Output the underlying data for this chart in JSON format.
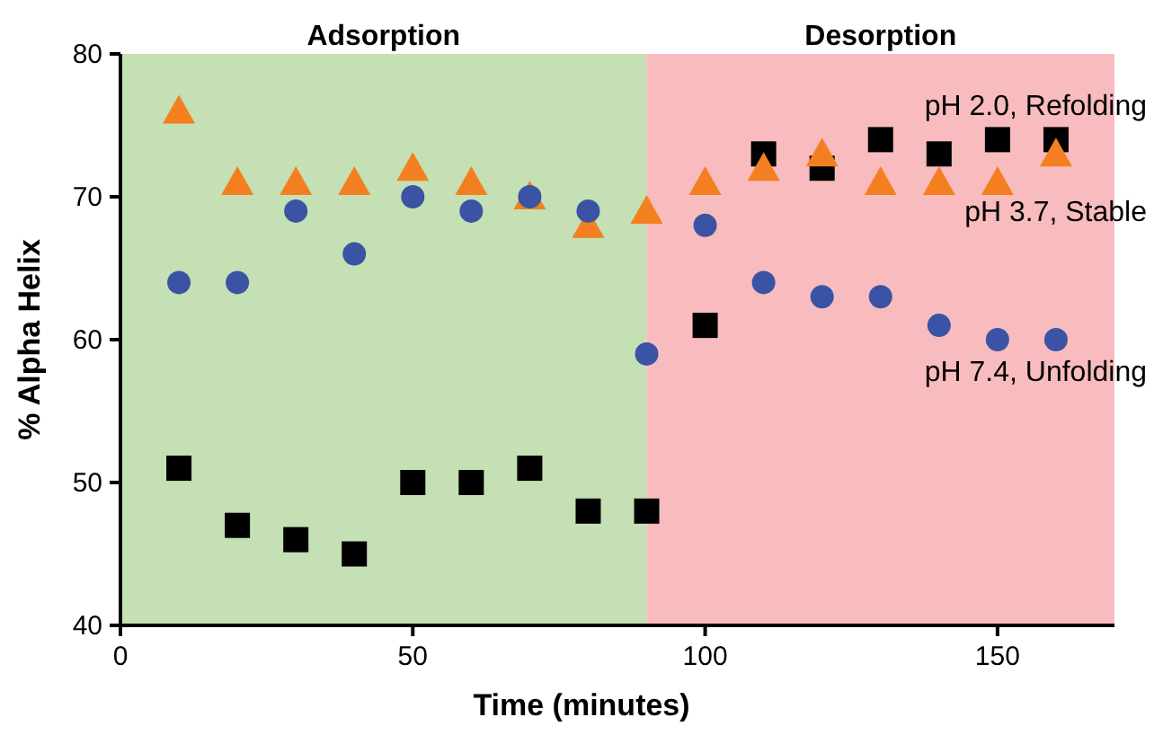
{
  "chart_data": {
    "type": "scatter",
    "xlabel": "Time (minutes)",
    "ylabel": "% Alpha Helix",
    "x": [
      10,
      20,
      30,
      40,
      50,
      60,
      70,
      80,
      90,
      100,
      110,
      120,
      130,
      140,
      150,
      160
    ],
    "xlim": [
      0,
      170
    ],
    "xticks": [
      0,
      50,
      100,
      150
    ],
    "ylim": [
      40,
      80
    ],
    "yticks": [
      40,
      50,
      60,
      70,
      80
    ],
    "grid": false,
    "legend": false,
    "bands": [
      {
        "axis": "x",
        "from": 0,
        "to": 90,
        "label": "Adsorption",
        "color": "#c5e0b4"
      },
      {
        "axis": "x",
        "from": 90,
        "to": 170,
        "label": "Desorption",
        "color": "#f8bcbf"
      }
    ],
    "series": [
      {
        "name": "pH 2.0, Refolding",
        "color": "#000000",
        "marker": "square",
        "values": [
          51,
          47,
          46,
          45,
          50,
          50,
          51,
          48,
          48,
          61,
          73,
          72,
          74,
          73,
          74,
          74
        ]
      },
      {
        "name": "pH 3.7, Stable",
        "color": "#f47f20",
        "marker": "triangle",
        "values": [
          76,
          71,
          71,
          71,
          72,
          71,
          70,
          68,
          69,
          71,
          72,
          73,
          71,
          71,
          71,
          73
        ]
      },
      {
        "name": "pH 7.4, Unfolding",
        "color": "#3a53a4",
        "marker": "circle",
        "values": [
          64,
          64,
          69,
          66,
          70,
          69,
          70,
          69,
          59,
          68,
          64,
          63,
          63,
          61,
          60,
          60
        ]
      }
    ]
  }
}
